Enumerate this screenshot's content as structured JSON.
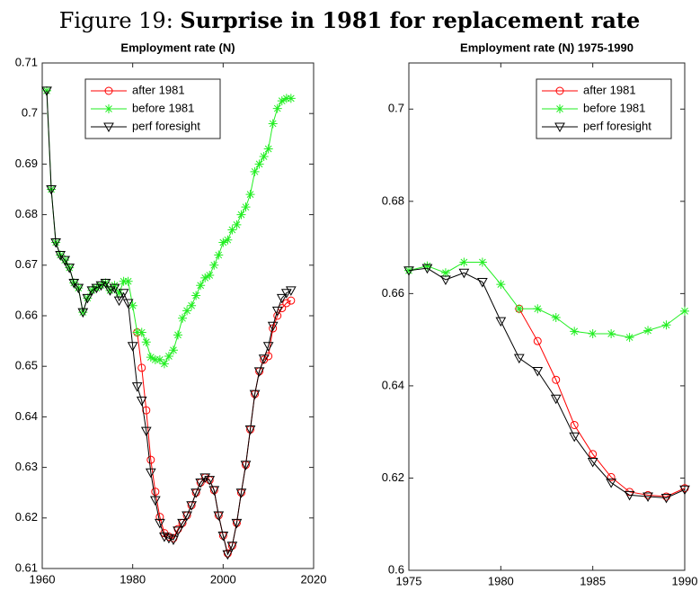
{
  "figure": {
    "label": "Figure 19:",
    "title": "Surprise in 1981 for replacement rate"
  },
  "chart_data": [
    {
      "type": "line",
      "title": "Employment rate (N)",
      "legend": "upper left",
      "x": [
        1961,
        1962,
        1963,
        1964,
        1965,
        1966,
        1967,
        1968,
        1969,
        1970,
        1971,
        1972,
        1973,
        1974,
        1975,
        1976,
        1977,
        1978,
        1979,
        1980,
        1981,
        1982,
        1983,
        1984,
        1985,
        1986,
        1987,
        1988,
        1989,
        1990,
        1991,
        1992,
        1993,
        1994,
        1995,
        1996,
        1997,
        1998,
        1999,
        2000,
        2001,
        2002,
        2003,
        2004,
        2005,
        2006,
        2007,
        2008,
        2009,
        2010,
        2011,
        2012,
        2013,
        2014,
        2015
      ],
      "xlim": [
        1960,
        2020
      ],
      "xticks": [
        1960,
        1980,
        2000,
        2020
      ],
      "ylim": [
        0.61,
        0.71
      ],
      "yticks": [
        0.61,
        0.62,
        0.63,
        0.64,
        0.65,
        0.66,
        0.67,
        0.68,
        0.69,
        0.7,
        0.71
      ],
      "series": [
        {
          "name": "after 1981",
          "color": "#ff0000",
          "marker": "o",
          "values": [
            null,
            null,
            null,
            null,
            null,
            null,
            null,
            null,
            null,
            null,
            null,
            null,
            null,
            null,
            null,
            null,
            null,
            null,
            null,
            null,
            0.6567,
            0.6497,
            0.6413,
            0.6315,
            0.6252,
            0.6202,
            0.617,
            0.6163,
            0.616,
            0.6178,
            0.619,
            0.6205,
            0.6225,
            0.625,
            0.627,
            0.628,
            0.6275,
            0.6255,
            0.6205,
            0.6165,
            0.613,
            0.6145,
            0.619,
            0.625,
            0.6305,
            0.6375,
            0.6445,
            0.649,
            0.6513,
            0.652,
            0.6575,
            0.66,
            0.6615,
            0.6625,
            0.663
          ]
        },
        {
          "name": "before 1981",
          "color": "#22ee22",
          "marker": "*",
          "values": [
            0.7045,
            0.685,
            0.6745,
            0.672,
            0.671,
            0.6695,
            0.6665,
            0.6655,
            0.6607,
            0.6635,
            0.665,
            0.6655,
            0.666,
            0.6665,
            0.665,
            0.666,
            0.6645,
            0.6668,
            0.6668,
            0.662,
            0.6567,
            0.6567,
            0.6548,
            0.6518,
            0.6513,
            0.6513,
            0.6505,
            0.652,
            0.6532,
            0.6562,
            0.6595,
            0.661,
            0.662,
            0.664,
            0.666,
            0.6675,
            0.668,
            0.67,
            0.672,
            0.6745,
            0.675,
            0.677,
            0.678,
            0.68,
            0.6815,
            0.684,
            0.6885,
            0.69,
            0.6915,
            0.693,
            0.698,
            0.701,
            0.7025,
            0.703,
            0.703
          ]
        },
        {
          "name": "perf foresight",
          "color": "#000000",
          "marker": "v",
          "values": [
            0.7045,
            0.685,
            0.6745,
            0.672,
            0.671,
            0.6695,
            0.6665,
            0.6655,
            0.6607,
            0.6635,
            0.665,
            0.6655,
            0.666,
            0.6665,
            0.665,
            0.6655,
            0.663,
            0.6645,
            0.6625,
            0.654,
            0.646,
            0.6432,
            0.6372,
            0.629,
            0.6235,
            0.619,
            0.6163,
            0.616,
            0.6157,
            0.6175,
            0.619,
            0.6205,
            0.6225,
            0.625,
            0.627,
            0.628,
            0.6275,
            0.6255,
            0.6205,
            0.6165,
            0.6128,
            0.6145,
            0.619,
            0.625,
            0.6305,
            0.6375,
            0.6445,
            0.649,
            0.6515,
            0.654,
            0.658,
            0.661,
            0.6635,
            0.6645,
            0.665
          ]
        }
      ]
    },
    {
      "type": "line",
      "title": "Employment rate (N) 1975-1990",
      "legend": "upper right",
      "x": [
        1975,
        1976,
        1977,
        1978,
        1979,
        1980,
        1981,
        1982,
        1983,
        1984,
        1985,
        1986,
        1987,
        1988,
        1989,
        1990
      ],
      "xlim": [
        1975,
        1990
      ],
      "xticks": [
        1975,
        1980,
        1985,
        1990
      ],
      "ylim": [
        0.6,
        0.71
      ],
      "yticks": [
        0.6,
        0.62,
        0.64,
        0.66,
        0.68,
        0.7
      ],
      "series": [
        {
          "name": "after 1981",
          "color": "#ff0000",
          "marker": "o",
          "values": [
            null,
            null,
            null,
            null,
            null,
            null,
            0.6567,
            0.6497,
            0.6413,
            0.6315,
            0.6252,
            0.6202,
            0.617,
            0.6163,
            0.616,
            0.6178
          ]
        },
        {
          "name": "before 1981",
          "color": "#22ee22",
          "marker": "*",
          "values": [
            0.665,
            0.666,
            0.6645,
            0.6668,
            0.6668,
            0.662,
            0.6567,
            0.6567,
            0.6548,
            0.6518,
            0.6513,
            0.6513,
            0.6505,
            0.652,
            0.6532,
            0.6562
          ]
        },
        {
          "name": "perf foresight",
          "color": "#000000",
          "marker": "v",
          "values": [
            0.665,
            0.6655,
            0.663,
            0.6645,
            0.6625,
            0.654,
            0.646,
            0.6432,
            0.6372,
            0.629,
            0.6235,
            0.619,
            0.6163,
            0.616,
            0.6157,
            0.6175
          ]
        }
      ]
    }
  ]
}
